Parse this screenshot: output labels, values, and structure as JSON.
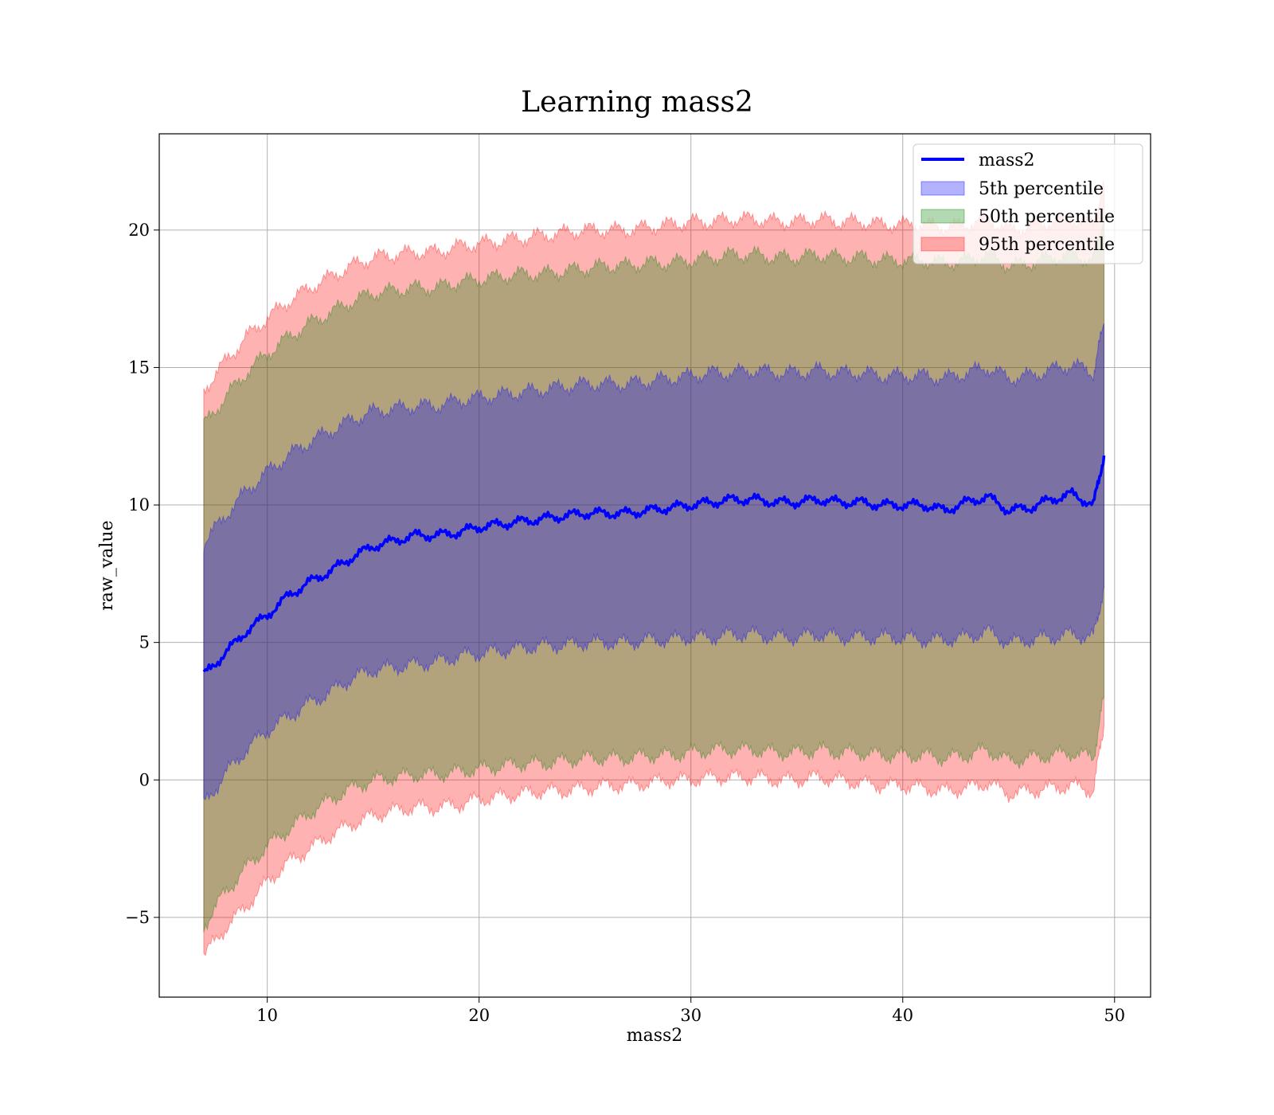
{
  "chart_data": {
    "type": "area",
    "title": "Learning mass2",
    "xlabel": "mass2",
    "ylabel": "raw_value",
    "xlim": [
      4.9,
      51.7
    ],
    "ylim": [
      -7.9,
      23.5
    ],
    "xticks": [
      10,
      20,
      30,
      40,
      50
    ],
    "yticks": [
      -5,
      0,
      5,
      10,
      15,
      20
    ],
    "xtick_labels": [
      "10",
      "20",
      "30",
      "40",
      "50"
    ],
    "ytick_labels": [
      "−5",
      "0",
      "5",
      "10",
      "15",
      "20"
    ],
    "grid": true,
    "legend_position": "upper right",
    "x": [
      7,
      8,
      9,
      10,
      11,
      12,
      13,
      14,
      15,
      16,
      17,
      18,
      19,
      20,
      21,
      22,
      23,
      24,
      25,
      26,
      27,
      28,
      29,
      30,
      31,
      32,
      33,
      34,
      35,
      36,
      37,
      38,
      39,
      40,
      41,
      42,
      43,
      44,
      45,
      46,
      47,
      48,
      49,
      49.5
    ],
    "series": [
      {
        "name": "mass2",
        "kind": "line",
        "color": "#0000ff",
        "values": [
          3.8,
          4.6,
          5.4,
          6.0,
          6.7,
          7.2,
          7.6,
          8.1,
          8.5,
          8.7,
          8.9,
          8.9,
          9.0,
          9.2,
          9.3,
          9.4,
          9.5,
          9.6,
          9.7,
          9.7,
          9.7,
          9.8,
          9.9,
          10.0,
          10.1,
          10.2,
          10.2,
          10.1,
          10.1,
          10.2,
          10.1,
          10.1,
          10.0,
          10.0,
          10.0,
          9.8,
          10.1,
          10.3,
          9.8,
          9.9,
          10.2,
          10.4,
          10.0,
          11.8
        ]
      },
      {
        "name": "5th percentile",
        "kind": "band",
        "color": "#0000ff",
        "lower": [
          -0.9,
          0.2,
          1.1,
          1.8,
          2.3,
          2.8,
          3.2,
          3.7,
          4.0,
          4.1,
          4.2,
          4.3,
          4.5,
          4.6,
          4.7,
          4.8,
          4.9,
          4.9,
          5.0,
          5.0,
          5.0,
          5.1,
          5.1,
          5.2,
          5.2,
          5.3,
          5.3,
          5.2,
          5.2,
          5.3,
          5.2,
          5.2,
          5.2,
          5.2,
          5.1,
          5.1,
          5.2,
          5.4,
          5.0,
          5.1,
          5.2,
          5.3,
          5.2,
          7.0
        ],
        "upper": [
          8.6,
          9.6,
          10.5,
          11.2,
          11.8,
          12.3,
          12.7,
          13.1,
          13.4,
          13.5,
          13.6,
          13.6,
          13.8,
          13.9,
          14.0,
          14.1,
          14.2,
          14.3,
          14.4,
          14.4,
          14.4,
          14.5,
          14.6,
          14.7,
          14.8,
          14.8,
          14.9,
          14.8,
          14.8,
          14.9,
          14.8,
          14.8,
          14.7,
          14.7,
          14.7,
          14.6,
          14.8,
          15.0,
          14.6,
          14.7,
          14.9,
          15.1,
          14.8,
          16.6
        ]
      },
      {
        "name": "50th percentile",
        "kind": "band",
        "color": "#008000",
        "lower": [
          -5.3,
          -4.1,
          -3.2,
          -2.4,
          -1.8,
          -1.2,
          -0.7,
          -0.3,
          0.0,
          0.1,
          0.2,
          0.2,
          0.3,
          0.4,
          0.5,
          0.6,
          0.6,
          0.7,
          0.8,
          0.8,
          0.8,
          0.9,
          0.9,
          1.0,
          1.1,
          1.1,
          1.1,
          1.0,
          1.0,
          1.1,
          1.0,
          1.0,
          0.9,
          0.9,
          0.9,
          0.8,
          0.9,
          1.1,
          0.7,
          0.8,
          0.9,
          1.0,
          0.8,
          3.0
        ],
        "upper": [
          12.9,
          13.9,
          14.8,
          15.5,
          16.1,
          16.6,
          17.0,
          17.4,
          17.7,
          17.8,
          17.9,
          17.9,
          18.1,
          18.2,
          18.3,
          18.4,
          18.4,
          18.5,
          18.6,
          18.7,
          18.7,
          18.8,
          18.8,
          18.9,
          19.0,
          19.1,
          19.1,
          19.0,
          19.0,
          19.1,
          19.0,
          19.0,
          18.9,
          18.9,
          18.9,
          18.8,
          18.9,
          19.1,
          18.7,
          18.8,
          19.0,
          19.1,
          18.9,
          20.5
        ]
      },
      {
        "name": "95th percentile",
        "kind": "band",
        "color": "#ff0000",
        "lower": [
          -6.4,
          -5.4,
          -4.6,
          -3.7,
          -3.0,
          -2.5,
          -2.0,
          -1.6,
          -1.3,
          -1.1,
          -1.0,
          -1.0,
          -0.9,
          -0.7,
          -0.6,
          -0.5,
          -0.4,
          -0.4,
          -0.3,
          -0.2,
          -0.2,
          -0.1,
          0.0,
          0.0,
          0.1,
          0.1,
          0.1,
          0.0,
          0.0,
          0.1,
          0.0,
          -0.1,
          -0.2,
          -0.2,
          -0.3,
          -0.4,
          -0.3,
          -0.1,
          -0.5,
          -0.4,
          -0.3,
          -0.2,
          -0.4,
          2.0
        ],
        "upper": [
          14.2,
          15.2,
          16.1,
          16.8,
          17.4,
          17.9,
          18.3,
          18.7,
          19.0,
          19.1,
          19.2,
          19.2,
          19.4,
          19.5,
          19.6,
          19.7,
          19.8,
          19.9,
          20.0,
          20.0,
          20.0,
          20.1,
          20.2,
          20.3,
          20.3,
          20.4,
          20.4,
          20.3,
          20.3,
          20.4,
          20.3,
          20.3,
          20.2,
          20.2,
          20.2,
          20.1,
          20.2,
          20.4,
          20.0,
          20.1,
          20.3,
          20.4,
          20.2,
          21.6
        ]
      }
    ]
  }
}
